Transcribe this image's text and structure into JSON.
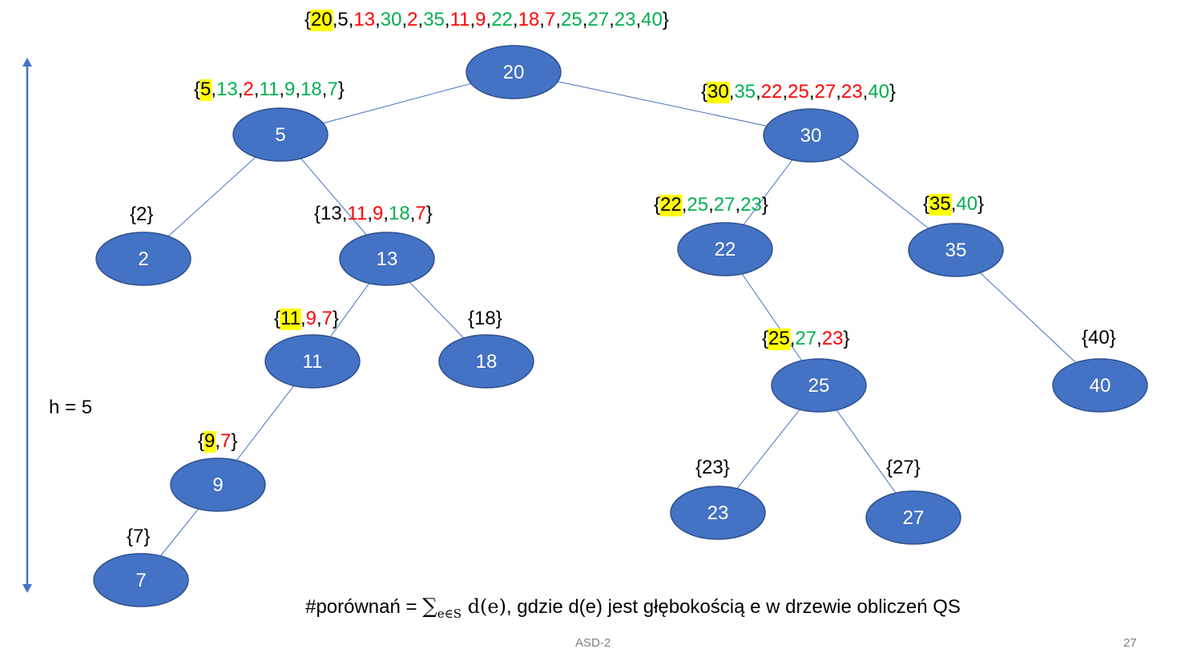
{
  "colors": {
    "node_fill": "#4472c4",
    "node_stroke": "#2f528f",
    "edge": "#4472c4",
    "pivot_highlight": "#ffff00",
    "smaller": "#00b050",
    "larger": "#ff0000",
    "neutral": "#000000",
    "height_arrow": "#4472c4"
  },
  "tree": {
    "nodes": [
      {
        "id": "20",
        "label": "20"
      },
      {
        "id": "5",
        "label": "5"
      },
      {
        "id": "30",
        "label": "30"
      },
      {
        "id": "2",
        "label": "2"
      },
      {
        "id": "13",
        "label": "13"
      },
      {
        "id": "11",
        "label": "11"
      },
      {
        "id": "18",
        "label": "18"
      },
      {
        "id": "9",
        "label": "9"
      },
      {
        "id": "7",
        "label": "7"
      },
      {
        "id": "22",
        "label": "22"
      },
      {
        "id": "35",
        "label": "35"
      },
      {
        "id": "25",
        "label": "25"
      },
      {
        "id": "40",
        "label": "40"
      },
      {
        "id": "23",
        "label": "23"
      },
      {
        "id": "27",
        "label": "27"
      }
    ],
    "edges": [
      [
        "20",
        "5"
      ],
      [
        "20",
        "30"
      ],
      [
        "5",
        "2"
      ],
      [
        "5",
        "13"
      ],
      [
        "13",
        "11"
      ],
      [
        "13",
        "18"
      ],
      [
        "11",
        "9"
      ],
      [
        "9",
        "7"
      ],
      [
        "30",
        "22"
      ],
      [
        "30",
        "35"
      ],
      [
        "22",
        "25"
      ],
      [
        "35",
        "40"
      ],
      [
        "25",
        "23"
      ],
      [
        "25",
        "27"
      ]
    ],
    "sets": [
      {
        "node": "20",
        "pivot": "20",
        "items": [
          {
            "v": "5",
            "c": "neutral"
          },
          {
            "v": "13",
            "c": "larger"
          },
          {
            "v": "30",
            "c": "smaller"
          },
          {
            "v": "2",
            "c": "larger"
          },
          {
            "v": "35",
            "c": "smaller"
          },
          {
            "v": "11",
            "c": "larger"
          },
          {
            "v": "9",
            "c": "larger"
          },
          {
            "v": "22",
            "c": "smaller"
          },
          {
            "v": "18",
            "c": "larger"
          },
          {
            "v": "7",
            "c": "larger"
          },
          {
            "v": "25",
            "c": "smaller"
          },
          {
            "v": "27",
            "c": "smaller"
          },
          {
            "v": "23",
            "c": "smaller"
          },
          {
            "v": "40",
            "c": "smaller"
          }
        ]
      },
      {
        "node": "5",
        "pivot": "5",
        "items": [
          {
            "v": "13",
            "c": "smaller"
          },
          {
            "v": "2",
            "c": "larger"
          },
          {
            "v": "11",
            "c": "smaller"
          },
          {
            "v": "9",
            "c": "smaller"
          },
          {
            "v": "18",
            "c": "smaller"
          },
          {
            "v": "7",
            "c": "smaller"
          }
        ]
      },
      {
        "node": "30",
        "pivot": "30",
        "items": [
          {
            "v": "35",
            "c": "smaller"
          },
          {
            "v": "22",
            "c": "larger"
          },
          {
            "v": "25",
            "c": "larger"
          },
          {
            "v": "27",
            "c": "larger"
          },
          {
            "v": "23",
            "c": "larger"
          },
          {
            "v": "40",
            "c": "smaller"
          }
        ]
      },
      {
        "node": "2",
        "pivot": "",
        "items": [
          {
            "v": "2",
            "c": "neutral"
          }
        ]
      },
      {
        "node": "13",
        "pivot": "",
        "items": [
          {
            "v": "13",
            "c": "neutral"
          },
          {
            "v": "11",
            "c": "larger"
          },
          {
            "v": "9",
            "c": "larger"
          },
          {
            "v": "18",
            "c": "smaller"
          },
          {
            "v": "7",
            "c": "larger"
          }
        ]
      },
      {
        "node": "22",
        "pivot": "22",
        "items": [
          {
            "v": "25",
            "c": "smaller"
          },
          {
            "v": "27",
            "c": "smaller"
          },
          {
            "v": "23",
            "c": "smaller"
          }
        ]
      },
      {
        "node": "35",
        "pivot": "35",
        "items": [
          {
            "v": "40",
            "c": "smaller"
          }
        ]
      },
      {
        "node": "11",
        "pivot": "11",
        "items": [
          {
            "v": "9",
            "c": "larger"
          },
          {
            "v": "7",
            "c": "larger"
          }
        ]
      },
      {
        "node": "18",
        "pivot": "",
        "items": [
          {
            "v": "18",
            "c": "neutral"
          }
        ]
      },
      {
        "node": "25",
        "pivot": "25",
        "items": [
          {
            "v": "27",
            "c": "smaller"
          },
          {
            "v": "23",
            "c": "larger"
          }
        ]
      },
      {
        "node": "40",
        "pivot": "",
        "items": [
          {
            "v": "40",
            "c": "neutral"
          }
        ]
      },
      {
        "node": "9",
        "pivot": "9",
        "items": [
          {
            "v": "7",
            "c": "larger"
          }
        ]
      },
      {
        "node": "23",
        "pivot": "",
        "items": [
          {
            "v": "23",
            "c": "neutral"
          }
        ]
      },
      {
        "node": "27",
        "pivot": "",
        "items": [
          {
            "v": "27",
            "c": "neutral"
          }
        ]
      },
      {
        "node": "7",
        "pivot": "",
        "items": [
          {
            "v": "7",
            "c": "neutral"
          }
        ]
      }
    ]
  },
  "height_label": "h = 5",
  "formula": {
    "prefix": "#porównań = ",
    "sum_symbol": "∑",
    "subscript": "e∈S",
    "term": " d(e)",
    "suffix": ", gdzie d(e) jest głębokością e w drzewie obliczeń QS"
  },
  "footer": {
    "title": "ASD-2",
    "page": "27"
  }
}
